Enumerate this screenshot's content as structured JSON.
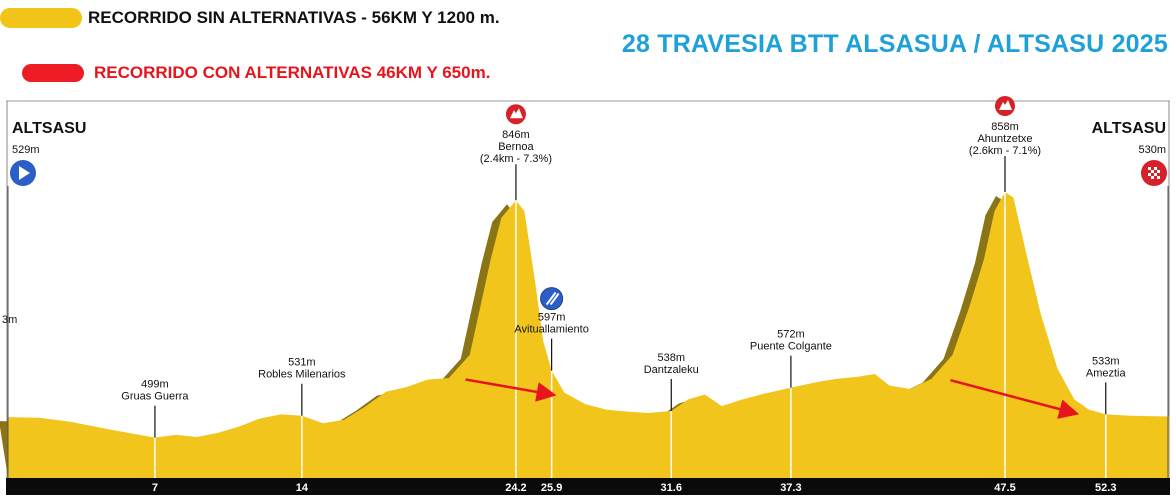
{
  "legend": {
    "yellow": {
      "label": "RECORRIDO SIN ALTERNATIVAS - 56KM Y 1200 m.",
      "color": "#f2c418",
      "text_color": "#111111"
    },
    "red": {
      "label": "RECORRIDO CON ALTERNATIVAS 46KM Y 650m.",
      "color": "#ee1c24",
      "text_color": "#e8141c"
    }
  },
  "title": "28 TRAVESIA BTT ALSASUA / ALTSASU 2025",
  "colors": {
    "fill": "#f2c51c",
    "shadow": "#8a7416",
    "axis_bar": "#0a0a0a",
    "arrow": "#e8141c",
    "start_icon": "#2b5fc7",
    "finish_icon": "#d6202a",
    "climb_icon": "#d6202a",
    "feed_icon": "#2b5fc7"
  },
  "chart_data": {
    "type": "area",
    "title": "",
    "xlabel": "",
    "ylabel": "",
    "xlim": [
      0,
      56
    ],
    "ylim": [
      440,
      900
    ],
    "grid": false,
    "legend_position": "top-left",
    "profile": {
      "x": [
        0,
        1.5,
        3,
        5,
        7,
        8,
        9,
        10,
        11,
        12,
        13,
        14,
        15,
        16,
        17,
        18,
        19,
        20,
        21,
        22,
        22.5,
        23,
        23.5,
        24.2,
        24.6,
        25.1,
        25.5,
        25.9,
        26.5,
        27.5,
        28.5,
        29.5,
        30.5,
        31.6,
        32.4,
        33.2,
        34,
        35,
        36,
        37.3,
        38.5,
        39.5,
        40.5,
        41.3,
        42,
        43,
        44,
        45,
        45.8,
        46.5,
        47,
        47.5,
        47.9,
        48.5,
        49.2,
        50,
        50.8,
        51.5,
        52.3,
        53.5,
        55,
        56
      ],
      "y": [
        529,
        528,
        522,
        510,
        499,
        503,
        500,
        506,
        515,
        527,
        533,
        531,
        520,
        525,
        544,
        566,
        573,
        584,
        586,
        620,
        690,
        760,
        820,
        846,
        830,
        730,
        640,
        597,
        565,
        548,
        540,
        537,
        535,
        538,
        555,
        562,
        545,
        555,
        563,
        572,
        580,
        585,
        588,
        592,
        575,
        570,
        585,
        620,
        690,
        760,
        830,
        858,
        850,
        770,
        680,
        600,
        555,
        540,
        533,
        531,
        530,
        530
      ]
    },
    "waypoints": [
      {
        "km": 0,
        "elevation": 529,
        "elevation_label": "529m",
        "name": "ALTSASU",
        "extra": "",
        "type": "start"
      },
      {
        "km": 7,
        "elevation": 499,
        "elevation_label": "499m",
        "name": "Gruas Guerra",
        "extra": "",
        "type": "point",
        "km_label": "7"
      },
      {
        "km": 14,
        "elevation": 531,
        "elevation_label": "531m",
        "name": "Robles Milenarios",
        "extra": "",
        "type": "point",
        "km_label": "14"
      },
      {
        "km": 24.2,
        "elevation": 846,
        "elevation_label": "846m",
        "name": "Bernoa",
        "extra": "(2.4km - 7.3%)",
        "type": "climb",
        "km_label": "24.2"
      },
      {
        "km": 25.9,
        "elevation": 597,
        "elevation_label": "597m",
        "name": "Avituallamiento",
        "extra": "",
        "type": "feed",
        "km_label": "25.9"
      },
      {
        "km": 31.6,
        "elevation": 538,
        "elevation_label": "538m",
        "name": "Dantzaleku",
        "extra": "",
        "type": "point",
        "km_label": "31.6"
      },
      {
        "km": 37.3,
        "elevation": 572,
        "elevation_label": "572m",
        "name": "Puente Colgante",
        "extra": "",
        "type": "point",
        "km_label": "37.3"
      },
      {
        "km": 47.5,
        "elevation": 858,
        "elevation_label": "858m",
        "name": "Ahuntzetxe",
        "extra": "(2.6km - 7.1%)",
        "type": "climb",
        "km_label": "47.5"
      },
      {
        "km": 52.3,
        "elevation": 533,
        "elevation_label": "533m",
        "name": "Ameztia",
        "extra": "",
        "type": "point",
        "km_label": "52.3"
      },
      {
        "km": 56,
        "elevation": 530,
        "elevation_label": "530m",
        "name": "ALTSASU",
        "extra": "",
        "type": "finish"
      }
    ],
    "left_cut_label": "3m",
    "alternatives": [
      {
        "from_km": 21.8,
        "to_km": 25.9,
        "from_elevation": 584,
        "to_elevation": 562
      },
      {
        "from_km": 44.9,
        "to_km": 50.8,
        "from_elevation": 583,
        "to_elevation": 535
      }
    ]
  }
}
